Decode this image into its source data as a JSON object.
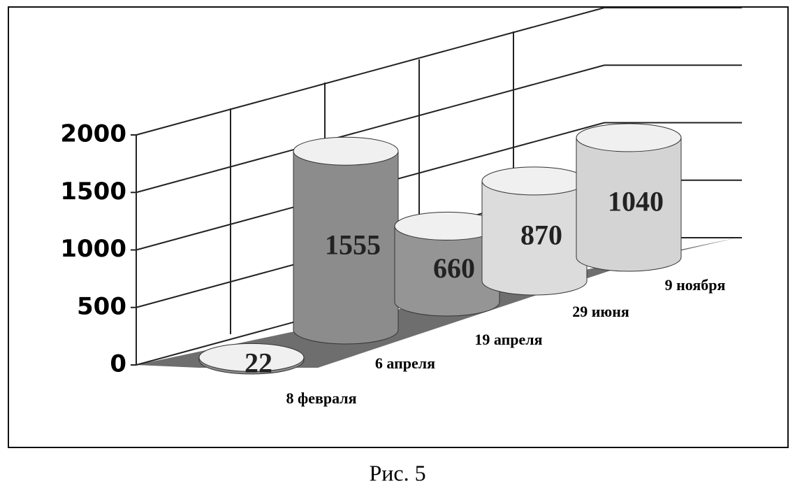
{
  "chart_data": {
    "type": "cylinder",
    "categories": [
      "8 февраля",
      "6 апреля",
      "19 апреля",
      "29 июня",
      "9 ноября"
    ],
    "values": [
      22,
      1555,
      660,
      870,
      1040
    ],
    "colors": [
      "#8c8c8c",
      "#8c8c8c",
      "#959595",
      "#dcdcdc",
      "#d4d4d4"
    ],
    "ylim": [
      0,
      2000
    ],
    "yticks": [
      0,
      500,
      1000,
      1500,
      2000
    ],
    "grid": true
  },
  "caption": "Рис. 5"
}
